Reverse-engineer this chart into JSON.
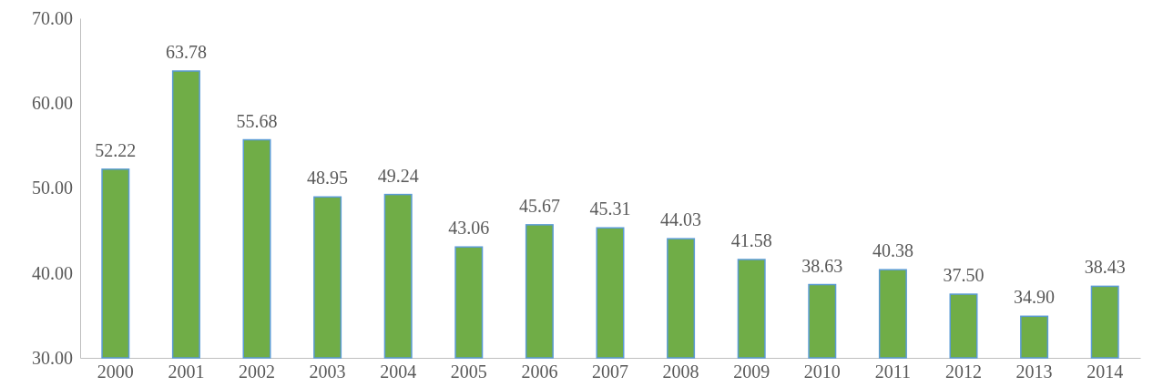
{
  "chart_data": {
    "type": "bar",
    "categories": [
      "2000",
      "2001",
      "2002",
      "2003",
      "2004",
      "2005",
      "2006",
      "2007",
      "2008",
      "2009",
      "2010",
      "2011",
      "2012",
      "2013",
      "2014"
    ],
    "values": [
      52.22,
      63.78,
      55.68,
      48.95,
      49.24,
      43.06,
      45.67,
      45.31,
      44.03,
      41.58,
      38.63,
      40.38,
      37.5,
      34.9,
      38.43
    ],
    "color": "#70ad47",
    "ylim": [
      30,
      70
    ],
    "yticks": [
      {
        "value": 30,
        "label": "30.00"
      },
      {
        "value": 40,
        "label": "40.00"
      },
      {
        "value": 50,
        "label": "50.00"
      },
      {
        "value": 60,
        "label": "60.00"
      },
      {
        "value": 70,
        "label": "70.00"
      }
    ],
    "value_labels": [
      "52.22",
      "63.78",
      "55.68",
      "48.95",
      "49.24",
      "43.06",
      "45.67",
      "45.31",
      "44.03",
      "41.58",
      "38.63",
      "40.38",
      "37.50",
      "34.90",
      "38.43"
    ]
  }
}
